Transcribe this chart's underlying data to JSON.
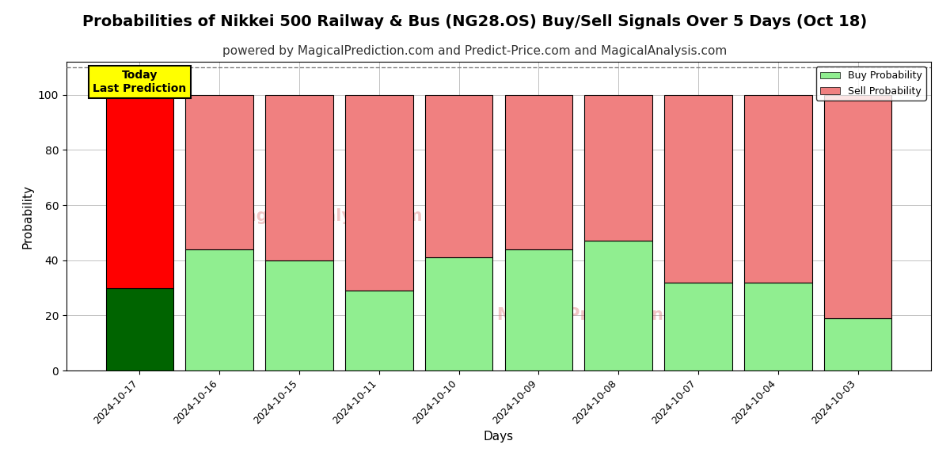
{
  "title": "Probabilities of Nikkei 500 Railway & Bus (NG28.OS) Buy/Sell Signals Over 5 Days (Oct 18)",
  "subtitle": "powered by MagicalPrediction.com and Predict-Price.com and MagicalAnalysis.com",
  "xlabel": "Days",
  "ylabel": "Probability",
  "categories": [
    "2024-10-17",
    "2024-10-16",
    "2024-10-15",
    "2024-10-11",
    "2024-10-10",
    "2024-10-09",
    "2024-10-08",
    "2024-10-07",
    "2024-10-04",
    "2024-10-03"
  ],
  "buy_values": [
    30,
    44,
    40,
    29,
    41,
    44,
    47,
    32,
    32,
    19
  ],
  "sell_values": [
    70,
    56,
    60,
    71,
    59,
    56,
    53,
    68,
    68,
    81
  ],
  "today_buy_color": "#006400",
  "today_sell_color": "#FF0000",
  "buy_color": "#90EE90",
  "sell_color": "#F08080",
  "ylim": [
    0,
    112
  ],
  "yticks": [
    0,
    20,
    40,
    60,
    80,
    100
  ],
  "dashed_line_y": 110,
  "legend_buy_label": "Buy Probability",
  "legend_sell_label": "Sell Probability",
  "today_label": "Today\nLast Prediction",
  "grid_color": "#aaaaaa",
  "title_fontsize": 14,
  "subtitle_fontsize": 11,
  "bar_width": 0.85
}
